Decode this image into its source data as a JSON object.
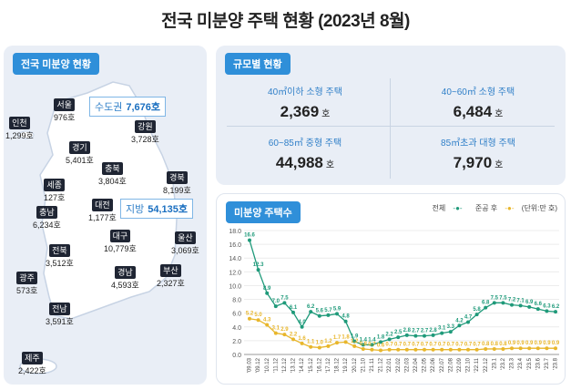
{
  "page": {
    "title": "전국 미분양 주택 현황  (2023년 8월)"
  },
  "map": {
    "tag": "전국 미분양 현황",
    "regions": [
      {
        "name": "서울",
        "value": "976호"
      },
      {
        "name": "인천",
        "value": "1,299호"
      },
      {
        "name": "경기",
        "value": "5,401호"
      },
      {
        "name": "강원",
        "value": "3,728호"
      },
      {
        "name": "충북",
        "value": "3,804호"
      },
      {
        "name": "경북",
        "value": "8,199호"
      },
      {
        "name": "세종",
        "value": "127호"
      },
      {
        "name": "대전",
        "value": "1,177호"
      },
      {
        "name": "충남",
        "value": "6,234호"
      },
      {
        "name": "대구",
        "value": "10,779호"
      },
      {
        "name": "울산",
        "value": "3,069호"
      },
      {
        "name": "전북",
        "value": "3,512호"
      },
      {
        "name": "경남",
        "value": "4,593호"
      },
      {
        "name": "부산",
        "value": "2,327호"
      },
      {
        "name": "광주",
        "value": "573호"
      },
      {
        "name": "전남",
        "value": "3,591호"
      },
      {
        "name": "제주",
        "value": "2,422호"
      }
    ],
    "capital": {
      "label": "수도권",
      "value": "7,676호"
    },
    "provincial": {
      "label": "지방",
      "value": "54,135호"
    }
  },
  "size": {
    "tag": "규모별 현황",
    "items": [
      {
        "title": "40㎡이하 소형 주택",
        "value": "2,369",
        "unit": "호"
      },
      {
        "title": "40~60㎡ 소형 주택",
        "value": "6,484",
        "unit": "호"
      },
      {
        "title": "60~85㎡ 중형 주택",
        "value": "44,988",
        "unit": "호"
      },
      {
        "title": "85㎡초과 대형 주택",
        "value": "7,970",
        "unit": "호"
      }
    ]
  },
  "chart": {
    "tag": "미분양 주택수",
    "legend_total": "전체",
    "legend_completed": "준공 후",
    "legend_unit": "(단위:만 호)",
    "colors": {
      "total": "#1f9a7a",
      "completed": "#e8b62b"
    }
  },
  "chart_data": {
    "type": "line",
    "ylim": [
      0,
      18
    ],
    "yticks": [
      "0.0",
      "2.0",
      "4.0",
      "6.0",
      "8.0",
      "10.0",
      "12.0",
      "14.0",
      "16.0",
      "18.0"
    ],
    "x": [
      "'09.03",
      "'09.12",
      "'10.12",
      "'11.12",
      "'12.12",
      "'13.12",
      "'14.12",
      "'15.12",
      "'16.12",
      "'17.12",
      "'18.12",
      "'19.12",
      "'20.12",
      "'21.10",
      "'21.11",
      "'21.12",
      "'22.01",
      "'22.02",
      "'22.03",
      "'22.04",
      "'22.05",
      "'22.06",
      "'22.07",
      "'22.08",
      "'22.09",
      "'22.10",
      "'22.11",
      "'22.12",
      "'23.1",
      "'23.2",
      "'23.3",
      "'23.4",
      "'23.5",
      "'23.6",
      "'23.7",
      "'23.8"
    ],
    "series": [
      {
        "name": "전체",
        "values": [
          16.6,
          12.3,
          8.9,
          7.0,
          7.5,
          6.1,
          4.0,
          6.2,
          5.6,
          5.7,
          5.9,
          4.8,
          1.9,
          1.4,
          1.4,
          1.8,
          2.2,
          2.5,
          2.8,
          2.7,
          2.7,
          2.8,
          3.1,
          3.3,
          4.2,
          4.7,
          5.8,
          6.8,
          7.5,
          7.5,
          7.2,
          7.1,
          6.9,
          6.6,
          6.3,
          6.2
        ],
        "labels": [
          "16.6",
          "12.3",
          "8.9",
          "7.0",
          "7.5",
          "6.1",
          "4.0",
          "6.2",
          "5.6",
          "5.7",
          "5.9",
          "4.8",
          "1.9",
          "1.4",
          "1.4",
          "1.8",
          "2.2",
          "2.5",
          "2.8",
          "2.7",
          "2.7",
          "2.8",
          "3.1",
          "3.3",
          "4.2",
          "4.7",
          "5.8",
          "6.8",
          "7.5",
          "7.5",
          "7.2",
          "7.1",
          "6.9",
          "6.6",
          "6.3",
          "6.2"
        ]
      },
      {
        "name": "준공 후",
        "values": [
          5.2,
          5.0,
          4.3,
          3.1,
          2.9,
          2.2,
          1.6,
          1.1,
          1.0,
          1.2,
          1.7,
          1.8,
          1.2,
          0.8,
          0.7,
          0.6,
          0.7,
          0.7,
          0.7,
          0.7,
          0.7,
          0.7,
          0.7,
          0.7,
          0.7,
          0.7,
          0.7,
          0.8,
          0.8,
          0.8,
          0.9,
          0.9,
          0.9,
          0.9,
          0.9,
          0.9
        ],
        "labels": [
          "5.2",
          "5.0",
          "4.3",
          "3.1",
          "2.9",
          "2.2",
          "1.6",
          "1.1",
          "1.0",
          "1.2",
          "1.7",
          "1.8",
          "1.2",
          "0.8",
          "0.7",
          "0.6",
          "0.7",
          "0.7",
          "0.7",
          "0.7",
          "0.7",
          "0.7",
          "0.7",
          "0.7",
          "0.7",
          "0.7",
          "0.7",
          "0.8",
          "0.8",
          "0.8",
          "0.9",
          "0.9",
          "0.9",
          "0.9",
          "0.9",
          "0.9"
        ]
      }
    ]
  }
}
